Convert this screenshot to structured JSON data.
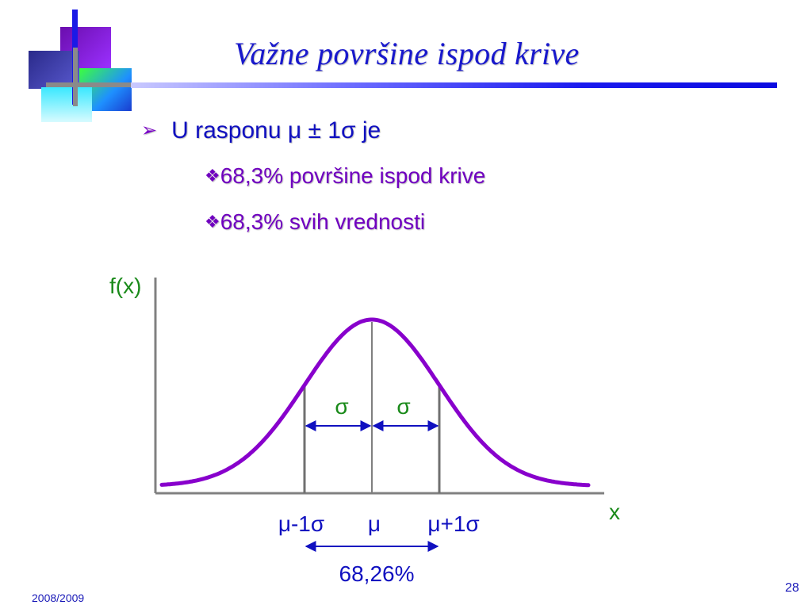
{
  "slide": {
    "title": "Važne površine ispod krive",
    "bullet": {
      "marker": "➢",
      "text": "U rasponu μ ± 1σ  je",
      "subitems": [
        {
          "marker": "❖",
          "text": "68,3% površine ispod krive"
        },
        {
          "marker": "❖",
          "text": "68,3% svih vrednosti"
        }
      ]
    },
    "footer": {
      "date": "2008/2009",
      "page": "28"
    }
  },
  "diagram": {
    "y_axis_label": "f(x)",
    "x_axis_label": "x",
    "sigma_left": "σ",
    "sigma_right": "σ",
    "tick_left": "μ-1σ",
    "tick_center": "μ",
    "tick_right": "μ+1σ",
    "span_label": "68,26%",
    "colors": {
      "curve": "#8800cc",
      "arrows": "#1010c0",
      "green_labels": "#1a8a1a",
      "tick_labels": "#1010c0",
      "axes": "#808080"
    }
  }
}
